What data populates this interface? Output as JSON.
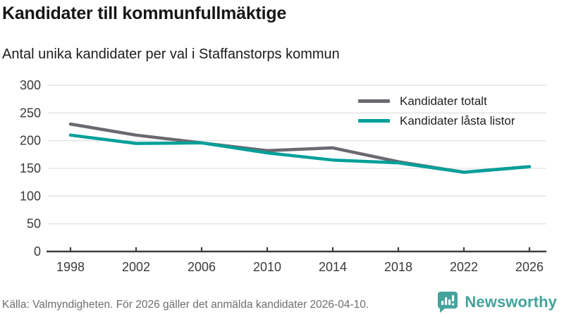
{
  "header": {
    "title": "Kandidater till kommunfullmäktige",
    "subtitle": "Antal unika kandidater per val i Staffanstorps kommun"
  },
  "legend": {
    "items": [
      {
        "label": "Kandidater totalt",
        "color": "#6b6870"
      },
      {
        "label": "Kandidater låsta listor",
        "color": "#00a099"
      }
    ]
  },
  "footer": {
    "source": "Källa: Valmyndigheten. För 2026 gäller det anmälda kandidater 2026-04-10.",
    "brand_name": "Newsworthy"
  },
  "colors": {
    "accent_teal": "#00a099",
    "neutral_gray": "#6b6870",
    "brand_teal": "#44a39c",
    "gridline": "#e2e2e2",
    "axis": "#3f3f3f",
    "tick_label": "#3a3a3a"
  },
  "chart_data": {
    "type": "line",
    "title": "Kandidater till kommunfullmäktige",
    "subtitle": "Antal unika kandidater per val i Staffanstorps kommun",
    "x": [
      1998,
      2002,
      2006,
      2010,
      2014,
      2018,
      2022,
      2026
    ],
    "series": [
      {
        "name": "Kandidater totalt",
        "color": "#6b6870",
        "values": [
          230,
          210,
          196,
          182,
          187,
          162,
          143,
          153
        ]
      },
      {
        "name": "Kandidater låsta listor",
        "color": "#00a099",
        "values": [
          210,
          195,
          196,
          178,
          165,
          160,
          143,
          153
        ]
      }
    ],
    "xlabel": "",
    "ylabel": "",
    "ylim": [
      0,
      300
    ],
    "yticks": [
      0,
      50,
      100,
      150,
      200,
      250,
      300
    ],
    "grid": true,
    "legend_position": "top-right"
  }
}
